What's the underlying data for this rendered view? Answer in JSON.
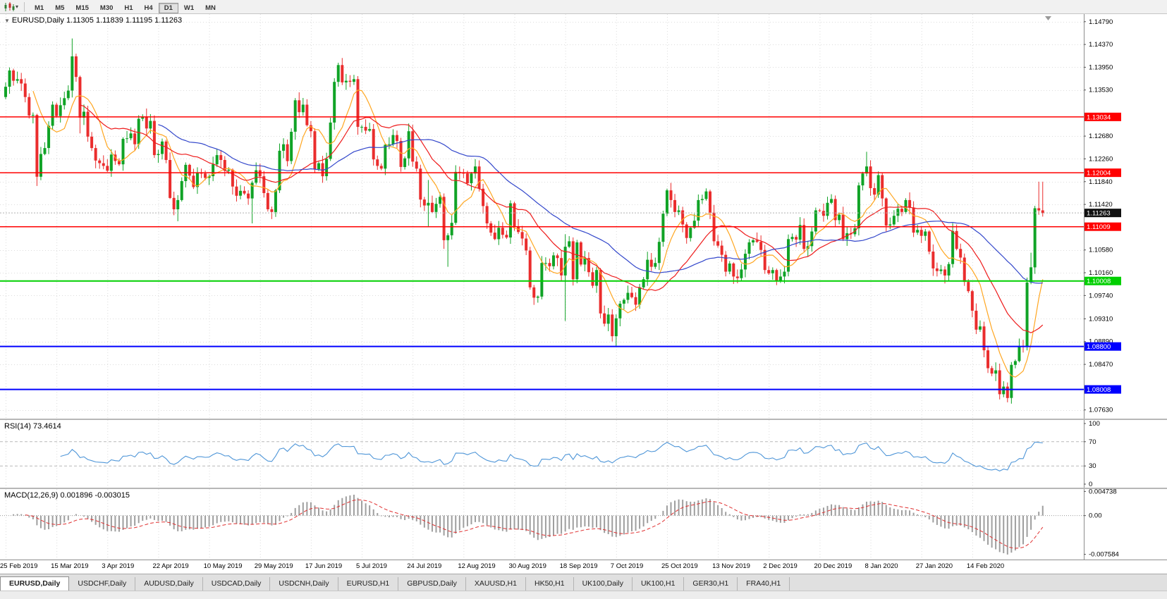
{
  "toolbar": {
    "timeframes": [
      "M1",
      "M5",
      "M15",
      "M30",
      "H1",
      "H4",
      "D1",
      "W1",
      "MN"
    ],
    "active_timeframe": "D1"
  },
  "main_chart": {
    "collapse_icon": "▼",
    "symbol_title": "EURUSD,Daily",
    "ohlc_text": "1.11305 1.11839 1.11195 1.11263",
    "current_price_label": "1.11263",
    "y_axis_labels": [
      "1.14790",
      "1.14370",
      "1.13950",
      "1.13530",
      "1.12680",
      "1.12260",
      "1.11840",
      "1.11420",
      "1.10580",
      "1.10160",
      "1.09740",
      "1.09310",
      "1.08890",
      "1.08470",
      "1.07630"
    ]
  },
  "rsi": {
    "title": "RSI(14)",
    "value": "73.4614",
    "period": 14,
    "axis_labels": [
      "100",
      "70",
      "30",
      "0"
    ],
    "upper_level": 70,
    "lower_level": 30,
    "line_color": "#4f96d8"
  },
  "macd": {
    "title": "MACD(12,26,9)",
    "value_main": "0.001896",
    "value_signal": "-0.003015",
    "fast": 12,
    "slow": 26,
    "signal": 9,
    "axis_labels": [
      "0.004738",
      "0.00",
      "-0.007584"
    ],
    "bar_color": "#9e9e9e",
    "signal_color": "#e03030"
  },
  "x_axis_labels": [
    "25 Feb 2019",
    "15 Mar 2019",
    "3 Apr 2019",
    "22 Apr 2019",
    "10 May 2019",
    "29 May 2019",
    "17 Jun 2019",
    "5 Jul 2019",
    "24 Jul 2019",
    "12 Aug 2019",
    "30 Aug 2019",
    "18 Sep 2019",
    "7 Oct 2019",
    "25 Oct 2019",
    "13 Nov 2019",
    "2 Dec 2019",
    "20 Dec 2019",
    "8 Jan 2020",
    "27 Jan 2020",
    "14 Feb 2020"
  ],
  "tabs": {
    "active": "EURUSD,Daily",
    "items": [
      "EURUSD,Daily",
      "USDCHF,Daily",
      "AUDUSD,Daily",
      "USDCAD,Daily",
      "USDCNH,Daily",
      "EURUSD,H1",
      "GBPUSD,Daily",
      "XAUUSD,H1",
      "HK50,H1",
      "UK100,Daily",
      "UK100,H1",
      "GER30,H1",
      "FRA40,H1"
    ],
    "icon": ""
  },
  "chart_data": {
    "type": "candlestick",
    "symbol": "EURUSD",
    "period": "Daily",
    "price_range": [
      1.0747,
      1.1493
    ],
    "first_open": 1.134,
    "closes": [
      1.1359,
      1.1389,
      1.137,
      1.1373,
      1.1365,
      1.134,
      1.1306,
      1.1307,
      1.1193,
      1.1235,
      1.1246,
      1.1287,
      1.1326,
      1.1305,
      1.1325,
      1.1338,
      1.1352,
      1.1415,
      1.1377,
      1.1302,
      1.1313,
      1.1267,
      1.1246,
      1.1223,
      1.1218,
      1.1213,
      1.1204,
      1.1234,
      1.1222,
      1.1216,
      1.1263,
      1.1264,
      1.1273,
      1.1253,
      1.13,
      1.1304,
      1.1282,
      1.1296,
      1.1233,
      1.1235,
      1.1258,
      1.1224,
      1.1154,
      1.1133,
      1.115,
      1.1185,
      1.1215,
      1.1195,
      1.1174,
      1.12,
      1.1199,
      1.1191,
      1.1194,
      1.1216,
      1.1233,
      1.1224,
      1.1204,
      1.1206,
      1.1175,
      1.1158,
      1.1167,
      1.1162,
      1.1153,
      1.1182,
      1.1205,
      1.1194,
      1.1163,
      1.1133,
      1.1128,
      1.1168,
      1.1241,
      1.1253,
      1.1222,
      1.1276,
      1.1334,
      1.1312,
      1.1326,
      1.1288,
      1.1277,
      1.1207,
      1.1218,
      1.1194,
      1.1226,
      1.1293,
      1.1368,
      1.1399,
      1.1367,
      1.137,
      1.1368,
      1.1373,
      1.1285,
      1.1285,
      1.1278,
      1.1281,
      1.1225,
      1.1213,
      1.1208,
      1.1252,
      1.1253,
      1.127,
      1.1259,
      1.1211,
      1.1227,
      1.1277,
      1.1221,
      1.1208,
      1.1151,
      1.114,
      1.1145,
      1.1128,
      1.1143,
      1.1156,
      1.1076,
      1.1085,
      1.1108,
      1.1202,
      1.12,
      1.1199,
      1.1181,
      1.1199,
      1.1212,
      1.1171,
      1.1139,
      1.1107,
      1.109,
      1.1078,
      1.1099,
      1.1086,
      1.1081,
      1.1144,
      1.1101,
      1.1091,
      1.1079,
      1.1057,
      1.0989,
      1.097,
      1.0972,
      1.1034,
      1.1034,
      1.1028,
      1.1048,
      1.1043,
      1.1011,
      1.1064,
      1.1074,
      1.1004,
      1.1072,
      1.1031,
      1.1043,
      1.1017,
      1.0992,
      1.1021,
      1.0941,
      1.0922,
      1.0939,
      1.0899,
      1.0932,
      1.0959,
      1.0966,
      1.0979,
      1.0971,
      1.0957,
      1.0989,
      1.1004,
      1.104,
      1.1027,
      1.1034,
      1.1073,
      1.1125,
      1.1168,
      1.115,
      1.1128,
      1.1131,
      1.1105,
      1.108,
      1.1099,
      1.1112,
      1.115,
      1.1152,
      1.1166,
      1.1127,
      1.1074,
      1.1066,
      1.1049,
      1.1018,
      1.1033,
      1.1009,
      1.1006,
      1.1022,
      1.1051,
      1.1072,
      1.1076,
      1.1073,
      1.1058,
      1.1021,
      1.1015,
      1.1021,
      1.1001,
      1.1009,
      1.1018,
      1.1078,
      1.1082,
      1.1077,
      1.1104,
      1.106,
      1.1065,
      1.1092,
      1.1131,
      1.113,
      1.1121,
      1.1145,
      1.1152,
      1.1113,
      1.1123,
      1.1078,
      1.1089,
      1.1087,
      1.1098,
      1.1177,
      1.1199,
      1.1212,
      1.1172,
      1.116,
      1.1196,
      1.1153,
      1.1103,
      1.1105,
      1.1121,
      1.1134,
      1.1128,
      1.115,
      1.1136,
      1.109,
      1.1095,
      1.1084,
      1.1092,
      1.1055,
      1.1024,
      1.1019,
      1.1022,
      1.1011,
      1.1032,
      1.1093,
      1.106,
      1.1044,
      1.0999,
      1.0982,
      1.0946,
      1.0911,
      1.0917,
      1.0873,
      1.084,
      1.083,
      1.0836,
      1.0792,
      1.0806,
      1.0785,
      1.0846,
      1.0853,
      1.0881,
      1.088,
      1.0998,
      1.1026,
      1.1135,
      1.1131,
      1.1126
    ],
    "wick_overrides": {
      "8": {
        "l": 1.1176
      },
      "17": {
        "h": 1.1448
      },
      "19": {
        "l": 1.1273
      },
      "44": {
        "l": 1.1111
      },
      "63": {
        "l": 1.1107
      },
      "86": {
        "h": 1.1412
      },
      "108": {
        "h": 1.1187,
        "l": 1.1101
      },
      "112": {
        "l": 1.106
      },
      "113": {
        "l": 1.1027
      },
      "143": {
        "h": 1.1087,
        "l": 1.0927
      },
      "156": {
        "l": 1.0879
      },
      "220": {
        "h": 1.1239
      },
      "256": {
        "l": 1.0777
      },
      "262": {
        "h": 1.1053
      },
      "264": {
        "h": 1.1184
      },
      "265": {
        "h": 1.11839,
        "l": 1.11195
      }
    },
    "moving_averages": [
      {
        "period": 8,
        "color": "#ffa620"
      },
      {
        "period": 20,
        "color": "#ee1c1c"
      },
      {
        "period": 40,
        "color": "#3347cb"
      }
    ],
    "levels": [
      {
        "price": 1.13034,
        "label": "1.13034",
        "color": "#ff0000",
        "width": 1.5
      },
      {
        "price": 1.12004,
        "label": "1.12004",
        "color": "#ff0000",
        "width": 1.5
      },
      {
        "price": 1.11009,
        "label": "1.11009",
        "color": "#ff0000",
        "width": 1.5
      },
      {
        "price": 1.10008,
        "label": "1.10008",
        "color": "#00cf00",
        "width": 2
      },
      {
        "price": 1.088,
        "label": "1.08800",
        "color": "#0000ff",
        "width": 2
      },
      {
        "price": 1.08008,
        "label": "1.08008",
        "color": "#0000ff",
        "width": 2
      }
    ],
    "current_price": 1.11263,
    "colors": {
      "up": "#10a326",
      "down": "#ea2d2d",
      "grid": "#dcdcdc"
    }
  }
}
